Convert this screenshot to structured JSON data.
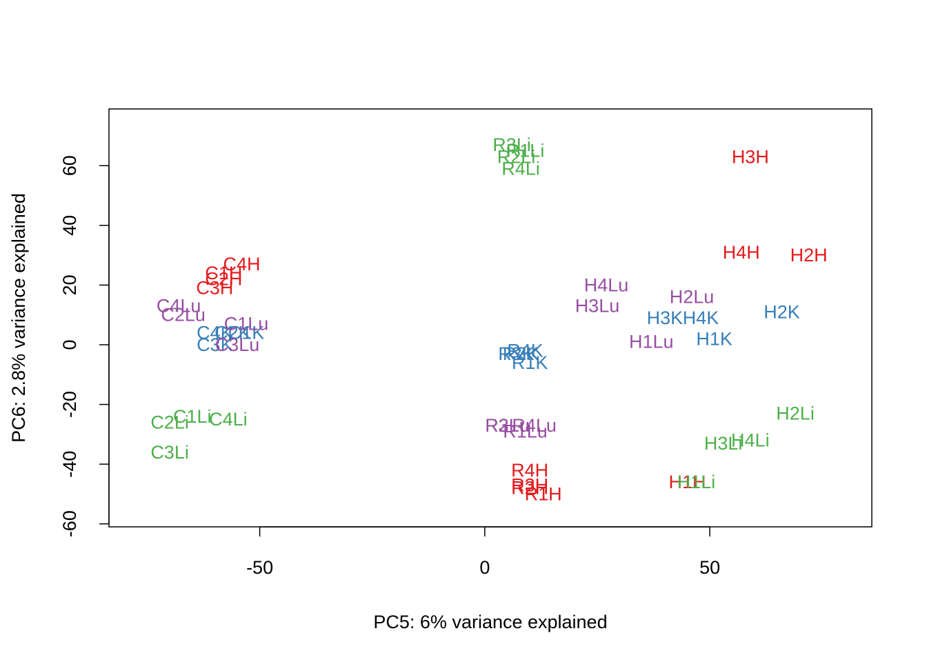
{
  "chart_data": {
    "type": "scatter",
    "title": "",
    "xlabel": "PC5: 6% variance explained",
    "ylabel": "PC6: 2.8% variance explained",
    "xlim": [
      -83.5,
      86
    ],
    "ylim": [
      -61,
      79
    ],
    "xticks": [
      -50,
      0,
      50
    ],
    "yticks": [
      -60,
      -40,
      -20,
      0,
      20,
      40,
      60
    ],
    "grid": false,
    "legend": "none",
    "colors": {
      "H": "#e41a1c",
      "Li": "#4daf4a",
      "K": "#377eb8",
      "Lu": "#984ea3"
    },
    "points": [
      {
        "label": "H3H",
        "x": 59,
        "y": 63,
        "group": "H"
      },
      {
        "label": "H4H",
        "x": 57,
        "y": 31,
        "group": "H"
      },
      {
        "label": "H2H",
        "x": 72,
        "y": 30,
        "group": "H"
      },
      {
        "label": "H1H",
        "x": 45,
        "y": -46,
        "group": "H"
      },
      {
        "label": "C4H",
        "x": -54,
        "y": 27,
        "group": "H"
      },
      {
        "label": "C1H",
        "x": -58,
        "y": 24,
        "group": "H"
      },
      {
        "label": "C2H",
        "x": -58,
        "y": 22,
        "group": "H"
      },
      {
        "label": "C3H",
        "x": -60,
        "y": 19,
        "group": "H"
      },
      {
        "label": "R4H",
        "x": 10,
        "y": -42,
        "group": "H"
      },
      {
        "label": "R3H",
        "x": 10,
        "y": -47,
        "group": "H"
      },
      {
        "label": "R2H",
        "x": 10,
        "y": -48,
        "group": "H"
      },
      {
        "label": "R1H",
        "x": 13,
        "y": -50,
        "group": "H"
      },
      {
        "label": "R3Li",
        "x": 6,
        "y": 67,
        "group": "Li"
      },
      {
        "label": "R1Li",
        "x": 9,
        "y": 65,
        "group": "Li"
      },
      {
        "label": "R2Li",
        "x": 7,
        "y": 63,
        "group": "Li"
      },
      {
        "label": "R4Li",
        "x": 8,
        "y": 59,
        "group": "Li"
      },
      {
        "label": "H2Li",
        "x": 69,
        "y": -23,
        "group": "Li"
      },
      {
        "label": "H3Li",
        "x": 53,
        "y": -33,
        "group": "Li"
      },
      {
        "label": "H4Li",
        "x": 59,
        "y": -32,
        "group": "Li"
      },
      {
        "label": "H1Li",
        "x": 47,
        "y": -46,
        "group": "Li"
      },
      {
        "label": "C1Li",
        "x": -65,
        "y": -24,
        "group": "Li"
      },
      {
        "label": "C4Li",
        "x": -57,
        "y": -25,
        "group": "Li"
      },
      {
        "label": "C2Li",
        "x": -70,
        "y": -26,
        "group": "Li"
      },
      {
        "label": "C3Li",
        "x": -70,
        "y": -36,
        "group": "Li"
      },
      {
        "label": "H2K",
        "x": 66,
        "y": 11,
        "group": "K"
      },
      {
        "label": "H3K",
        "x": 40,
        "y": 9,
        "group": "K"
      },
      {
        "label": "H4K",
        "x": 48,
        "y": 9,
        "group": "K"
      },
      {
        "label": "H1K",
        "x": 51,
        "y": 2,
        "group": "K"
      },
      {
        "label": "C4K",
        "x": -60,
        "y": 4,
        "group": "K"
      },
      {
        "label": "C2K",
        "x": -56,
        "y": 4,
        "group": "K"
      },
      {
        "label": "C1K",
        "x": -53,
        "y": 4,
        "group": "K"
      },
      {
        "label": "C3K",
        "x": -60,
        "y": 0,
        "group": "K"
      },
      {
        "label": "R4K",
        "x": 9,
        "y": -2,
        "group": "K"
      },
      {
        "label": "R3K",
        "x": 7,
        "y": -3,
        "group": "K"
      },
      {
        "label": "R2K",
        "x": 8,
        "y": -3,
        "group": "K"
      },
      {
        "label": "R1K",
        "x": 10,
        "y": -6,
        "group": "K"
      },
      {
        "label": "H4Lu",
        "x": 27,
        "y": 20,
        "group": "Lu"
      },
      {
        "label": "H2Lu",
        "x": 46,
        "y": 16,
        "group": "Lu"
      },
      {
        "label": "H3Lu",
        "x": 25,
        "y": 13,
        "group": "Lu"
      },
      {
        "label": "H1Lu",
        "x": 37,
        "y": 1,
        "group": "Lu"
      },
      {
        "label": "C4Lu",
        "x": -68,
        "y": 13,
        "group": "Lu"
      },
      {
        "label": "C2Lu",
        "x": -67,
        "y": 10,
        "group": "Lu"
      },
      {
        "label": "C1Lu",
        "x": -53,
        "y": 7,
        "group": "Lu"
      },
      {
        "label": "C3Lu",
        "x": -55,
        "y": 0,
        "group": "Lu"
      },
      {
        "label": "R4Lu",
        "x": 11,
        "y": -27,
        "group": "Lu"
      },
      {
        "label": "R2Lu",
        "x": 5,
        "y": -27,
        "group": "Lu"
      },
      {
        "label": "R3Lu",
        "x": 5,
        "y": -27,
        "group": "Lu"
      },
      {
        "label": "R1Lu",
        "x": 9,
        "y": -29,
        "group": "Lu"
      }
    ]
  }
}
